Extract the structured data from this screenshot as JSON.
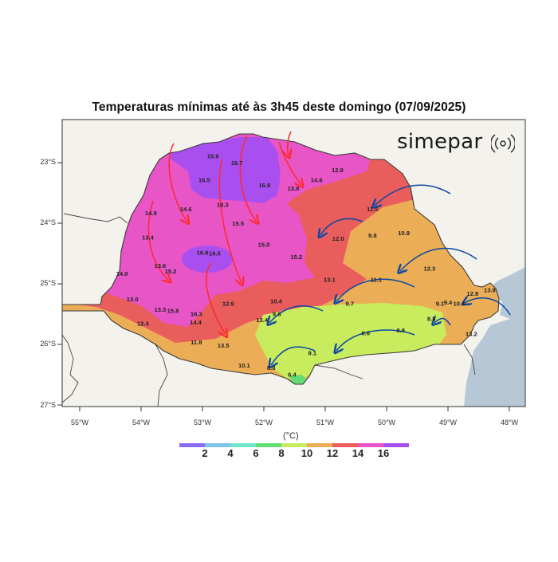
{
  "title": "Temperaturas mínimas até às 3h45 deste domingo (07/09/2025)",
  "brand": {
    "name": "simepar",
    "logo_icon": "signal-waves-icon"
  },
  "axes": {
    "latitudes": [
      "23°S",
      "24°S",
      "25°S",
      "26°S",
      "27°S"
    ],
    "longitudes": [
      "55°W",
      "54°W",
      "53°W",
      "52°W",
      "51°W",
      "50°W",
      "49°W",
      "48°W"
    ]
  },
  "legend": {
    "units": "(°C)",
    "ticks": [
      "2",
      "4",
      "6",
      "8",
      "10",
      "12",
      "14",
      "16"
    ],
    "colors": [
      "#8a6cf0",
      "#7ec3ec",
      "#6fe6c8",
      "#63dd71",
      "#c9eb5e",
      "#ebae56",
      "#ea5d5d",
      "#e855c6",
      "#a94ff0"
    ]
  },
  "map_colors": {
    "background": "#f4f2ec",
    "ocean": "#b6c8d6",
    "band_16": "#a94ff0",
    "band_14": "#e855c6",
    "band_12": "#ea5d5d",
    "band_10": "#ebae56",
    "band_8": "#c9eb5e",
    "band_6": "#63dd71",
    "warm_arrow": "#ff2a2a",
    "cold_arrow": "#0c48a4"
  },
  "stations": [
    {
      "v": "15.9",
      "lon": -52.83,
      "lat": -22.93
    },
    {
      "v": "16.7",
      "lon": -52.44,
      "lat": -23.04
    },
    {
      "v": "16.5",
      "lon": -52.97,
      "lat": -23.32
    },
    {
      "v": "16.9",
      "lon": -51.99,
      "lat": -23.41
    },
    {
      "v": "13.8",
      "lon": -51.52,
      "lat": -23.46
    },
    {
      "v": "14.6",
      "lon": -51.14,
      "lat": -23.32
    },
    {
      "v": "12.8",
      "lon": -50.8,
      "lat": -23.16
    },
    {
      "v": "16.3",
      "lon": -52.67,
      "lat": -23.73
    },
    {
      "v": "14.6",
      "lon": -53.27,
      "lat": -23.8
    },
    {
      "v": "14.9",
      "lon": -53.84,
      "lat": -23.87
    },
    {
      "v": "15.5",
      "lon": -52.42,
      "lat": -24.04
    },
    {
      "v": "11.5",
      "lon": -50.23,
      "lat": -23.8
    },
    {
      "v": "13.4",
      "lon": -53.89,
      "lat": -24.27
    },
    {
      "v": "12.0",
      "lon": -50.79,
      "lat": -24.29
    },
    {
      "v": "9.8",
      "lon": -50.23,
      "lat": -24.24
    },
    {
      "v": "10.9",
      "lon": -49.72,
      "lat": -24.2
    },
    {
      "v": "15.0",
      "lon": -52.0,
      "lat": -24.39
    },
    {
      "v": "16.8",
      "lon": -53.0,
      "lat": -24.52
    },
    {
      "v": "16.5",
      "lon": -52.8,
      "lat": -24.53
    },
    {
      "v": "15.2",
      "lon": -51.47,
      "lat": -24.59
    },
    {
      "v": "13.6",
      "lon": -53.69,
      "lat": -24.74
    },
    {
      "v": "15.2",
      "lon": -53.52,
      "lat": -24.83
    },
    {
      "v": "14.0",
      "lon": -54.31,
      "lat": -24.87
    },
    {
      "v": "12.3",
      "lon": -49.3,
      "lat": -24.78
    },
    {
      "v": "13.1",
      "lon": -50.93,
      "lat": -24.97
    },
    {
      "v": "11.1",
      "lon": -50.17,
      "lat": -24.97
    },
    {
      "v": "13.0",
      "lon": -54.14,
      "lat": -25.29
    },
    {
      "v": "10.4",
      "lon": -51.8,
      "lat": -25.32
    },
    {
      "v": "12.9",
      "lon": -52.58,
      "lat": -25.36
    },
    {
      "v": "9.7",
      "lon": -50.6,
      "lat": -25.36
    },
    {
      "v": "9.1",
      "lon": -49.13,
      "lat": -25.36
    },
    {
      "v": "9.4",
      "lon": -49.0,
      "lat": -25.34
    },
    {
      "v": "10.4",
      "lon": -48.82,
      "lat": -25.36
    },
    {
      "v": "12.8",
      "lon": -48.6,
      "lat": -25.2
    },
    {
      "v": "13.9",
      "lon": -48.32,
      "lat": -25.14
    },
    {
      "v": "13.3",
      "lon": -53.69,
      "lat": -25.46
    },
    {
      "v": "15.8",
      "lon": -53.48,
      "lat": -25.48
    },
    {
      "v": "16.3",
      "lon": -53.1,
      "lat": -25.53
    },
    {
      "v": "9.6",
      "lon": -51.79,
      "lat": -25.53
    },
    {
      "v": "13.4",
      "lon": -52.03,
      "lat": -25.63
    },
    {
      "v": "12.4",
      "lon": -53.97,
      "lat": -25.69
    },
    {
      "v": "14.4",
      "lon": -53.11,
      "lat": -25.67
    },
    {
      "v": "8.8",
      "lon": -49.27,
      "lat": -25.61
    },
    {
      "v": "9.6",
      "lon": -50.34,
      "lat": -25.85
    },
    {
      "v": "8.8",
      "lon": -49.77,
      "lat": -25.8
    },
    {
      "v": "13.2",
      "lon": -48.62,
      "lat": -25.86
    },
    {
      "v": "11.8",
      "lon": -53.1,
      "lat": -26.0
    },
    {
      "v": "13.5",
      "lon": -52.66,
      "lat": -26.05
    },
    {
      "v": "9.1",
      "lon": -51.21,
      "lat": -26.18
    },
    {
      "v": "10.1",
      "lon": -52.32,
      "lat": -26.38
    },
    {
      "v": "8.8",
      "lon": -51.88,
      "lat": -26.42
    },
    {
      "v": "6.4",
      "lon": -51.54,
      "lat": -26.53
    }
  ]
}
